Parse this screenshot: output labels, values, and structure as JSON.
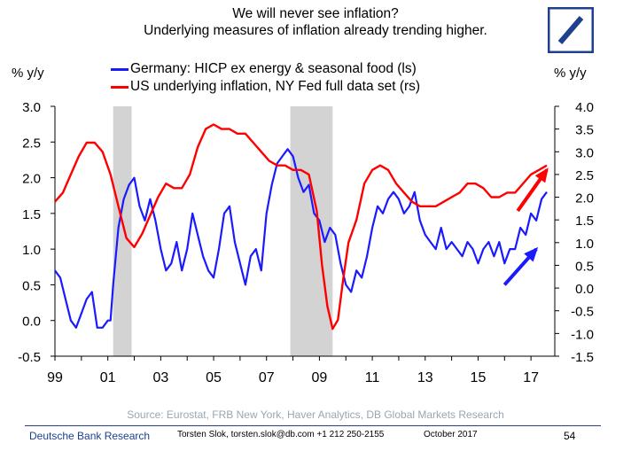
{
  "header": {
    "title_line1": "We will never see inflation?",
    "title_line2": "Underlying measures of inflation already trending higher."
  },
  "logo": {
    "name": "deutsche-bank-logo"
  },
  "colors": {
    "germany": "#1a1aff",
    "us": "#ff0000",
    "recession": "#d3d3d3",
    "brand": "#1f3f8f"
  },
  "chart_data": {
    "type": "line",
    "left_axis_label": "% y/y",
    "right_axis_label": "% y/y",
    "x_ticks": [
      "99",
      "01",
      "03",
      "05",
      "07",
      "09",
      "11",
      "13",
      "15",
      "17"
    ],
    "x_tick_years": [
      1999,
      2001,
      2003,
      2005,
      2007,
      2009,
      2011,
      2013,
      2015,
      2017
    ],
    "xlim": [
      1999,
      2017.9
    ],
    "left_ylim": [
      -0.5,
      3.0
    ],
    "left_y_ticks": [
      "-0.5",
      "0.0",
      "0.5",
      "1.0",
      "1.5",
      "2.0",
      "2.5",
      "3.0"
    ],
    "left_y_tick_values": [
      -0.5,
      0.0,
      0.5,
      1.0,
      1.5,
      2.0,
      2.5,
      3.0
    ],
    "right_ylim": [
      -1.5,
      4.0
    ],
    "right_y_ticks": [
      "-1.5",
      "-1.0",
      "-0.5",
      "0.0",
      "0.5",
      "1.0",
      "1.5",
      "2.0",
      "2.5",
      "3.0",
      "3.5",
      "4.0"
    ],
    "right_y_tick_values": [
      -1.5,
      -1.0,
      -0.5,
      0.0,
      0.5,
      1.0,
      1.5,
      2.0,
      2.5,
      3.0,
      3.5,
      4.0
    ],
    "recessions": [
      [
        2001.2,
        2001.9
      ],
      [
        2007.9,
        2009.5
      ]
    ],
    "series": [
      {
        "name": "Germany: HICP ex energy & seasonal food (ls)",
        "axis": "left",
        "x": [
          1999.0,
          1999.2,
          1999.4,
          1999.6,
          1999.8,
          2000.0,
          2000.2,
          2000.4,
          2000.6,
          2000.8,
          2001.0,
          2001.1,
          2001.2,
          2001.4,
          2001.6,
          2001.8,
          2002.0,
          2002.2,
          2002.4,
          2002.6,
          2002.8,
          2003.0,
          2003.2,
          2003.4,
          2003.6,
          2003.8,
          2004.0,
          2004.2,
          2004.4,
          2004.6,
          2004.8,
          2005.0,
          2005.2,
          2005.4,
          2005.6,
          2005.8,
          2006.0,
          2006.2,
          2006.4,
          2006.6,
          2006.8,
          2007.0,
          2007.2,
          2007.4,
          2007.6,
          2007.8,
          2008.0,
          2008.2,
          2008.4,
          2008.6,
          2008.8,
          2009.0,
          2009.2,
          2009.4,
          2009.6,
          2009.8,
          2010.0,
          2010.2,
          2010.4,
          2010.6,
          2010.8,
          2011.0,
          2011.2,
          2011.4,
          2011.6,
          2011.8,
          2012.0,
          2012.2,
          2012.4,
          2012.6,
          2012.8,
          2013.0,
          2013.2,
          2013.4,
          2013.6,
          2013.8,
          2014.0,
          2014.2,
          2014.4,
          2014.6,
          2014.8,
          2015.0,
          2015.2,
          2015.4,
          2015.6,
          2015.8,
          2016.0,
          2016.2,
          2016.4,
          2016.6,
          2016.8,
          2017.0,
          2017.2,
          2017.4,
          2017.6
        ],
        "values": [
          0.7,
          0.6,
          0.3,
          0.0,
          -0.1,
          0.1,
          0.3,
          0.4,
          -0.1,
          -0.1,
          0.0,
          0.0,
          0.5,
          1.3,
          1.7,
          1.9,
          2.0,
          1.6,
          1.4,
          1.7,
          1.4,
          1.0,
          0.7,
          0.8,
          1.1,
          0.7,
          1.0,
          1.5,
          1.2,
          0.9,
          0.7,
          0.6,
          1.0,
          1.5,
          1.6,
          1.1,
          0.8,
          0.5,
          0.9,
          1.0,
          0.7,
          1.5,
          1.9,
          2.2,
          2.3,
          2.4,
          2.3,
          2.0,
          1.8,
          1.9,
          1.5,
          1.4,
          1.1,
          1.3,
          1.2,
          0.8,
          0.5,
          0.4,
          0.7,
          0.6,
          0.9,
          1.3,
          1.6,
          1.5,
          1.7,
          1.8,
          1.7,
          1.5,
          1.6,
          1.8,
          1.4,
          1.2,
          1.1,
          1.0,
          1.3,
          1.0,
          1.1,
          1.0,
          0.9,
          1.1,
          1.0,
          0.8,
          1.0,
          1.1,
          0.9,
          1.1,
          0.8,
          1.0,
          1.0,
          1.3,
          1.2,
          1.5,
          1.4,
          1.7,
          1.8
        ]
      },
      {
        "name": "US underlying inflation, NY Fed full data set (rs)",
        "axis": "right",
        "x": [
          1999.0,
          1999.3,
          1999.6,
          1999.9,
          2000.2,
          2000.5,
          2000.8,
          2001.1,
          2001.4,
          2001.7,
          2002.0,
          2002.3,
          2002.6,
          2002.9,
          2003.2,
          2003.5,
          2003.8,
          2004.1,
          2004.4,
          2004.7,
          2005.0,
          2005.3,
          2005.6,
          2005.9,
          2006.2,
          2006.5,
          2006.8,
          2007.1,
          2007.4,
          2007.7,
          2008.0,
          2008.3,
          2008.6,
          2008.9,
          2009.1,
          2009.3,
          2009.5,
          2009.7,
          2009.9,
          2010.1,
          2010.4,
          2010.7,
          2011.0,
          2011.3,
          2011.6,
          2011.9,
          2012.2,
          2012.5,
          2012.8,
          2013.1,
          2013.4,
          2013.7,
          2014.0,
          2014.3,
          2014.6,
          2014.9,
          2015.2,
          2015.5,
          2015.8,
          2016.1,
          2016.4,
          2016.7,
          2017.0,
          2017.3,
          2017.6
        ],
        "values": [
          1.9,
          2.1,
          2.5,
          2.9,
          3.2,
          3.2,
          3.0,
          2.5,
          1.8,
          1.1,
          0.9,
          1.2,
          1.6,
          2.0,
          2.3,
          2.2,
          2.2,
          2.5,
          3.1,
          3.5,
          3.6,
          3.5,
          3.5,
          3.4,
          3.4,
          3.2,
          3.0,
          2.8,
          2.7,
          2.7,
          2.6,
          2.6,
          2.5,
          1.7,
          0.5,
          -0.4,
          -0.9,
          -0.7,
          0.2,
          1.0,
          1.5,
          2.3,
          2.6,
          2.7,
          2.6,
          2.3,
          2.1,
          1.9,
          1.8,
          1.8,
          1.8,
          1.9,
          2.0,
          2.1,
          2.3,
          2.3,
          2.2,
          2.0,
          2.0,
          2.1,
          2.1,
          2.3,
          2.5,
          2.6,
          2.7
        ]
      }
    ],
    "arrows": [
      {
        "color": "red",
        "from": [
          2016.5,
          1.7
        ],
        "to": [
          2017.6,
          2.6
        ],
        "axis": "right"
      },
      {
        "color": "blue",
        "from": [
          2016.0,
          0.5
        ],
        "to": [
          2017.2,
          1.0
        ],
        "axis": "left"
      }
    ]
  },
  "source": "Source: Eurostat, FRB New York, Haver Analytics, DB Global Markets Research",
  "footer": {
    "brand": "Deutsche Bank Research",
    "author": "Torsten Slok, torsten.slok@db.com  +1 212 250-2155",
    "date": "October  2017",
    "page": "54"
  }
}
